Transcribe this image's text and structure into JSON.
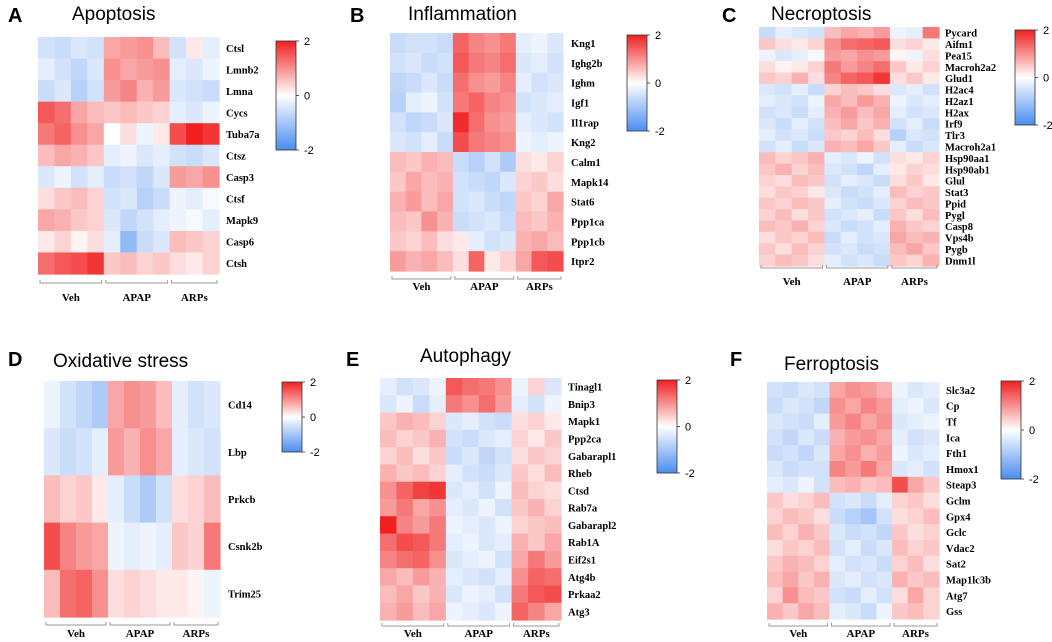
{
  "figure": {
    "scale": {
      "min": -2,
      "max": 2,
      "ticks": [
        2,
        0,
        -2
      ],
      "low_color": "#4a8cf0",
      "mid_color": "#ffffff",
      "high_color": "#f02020"
    },
    "groups": [
      "Veh",
      "APAP",
      "ARPs"
    ]
  },
  "chart_data": [
    {
      "type": "heatmap",
      "letter": "A",
      "title": "Apoptosis",
      "groups": [
        "Veh",
        "APAP",
        "ARPs"
      ],
      "group_sizes": [
        4,
        4,
        3
      ],
      "rows": [
        "Ctsl",
        "Lmnb2",
        "Lmna",
        "Cycs",
        "Tuba7a",
        "Ctsz",
        "Casp3",
        "Ctsf",
        "Mapk9",
        "Casp6",
        "Ctsh"
      ],
      "values": [
        [
          -0.5,
          -0.6,
          -0.4,
          -0.5,
          0.8,
          0.9,
          1.0,
          0.6,
          -0.5,
          0.2,
          -0.3
        ],
        [
          -0.3,
          -0.5,
          -0.7,
          -0.4,
          1.0,
          0.8,
          0.9,
          1.0,
          -0.3,
          -0.4,
          -0.2
        ],
        [
          -0.6,
          -0.4,
          -0.8,
          -0.5,
          0.9,
          1.1,
          0.7,
          0.9,
          -0.4,
          -0.5,
          -0.6
        ],
        [
          1.5,
          1.3,
          0.8,
          0.6,
          0.5,
          0.6,
          0.5,
          0.4,
          -0.3,
          -0.4,
          -0.2
        ],
        [
          1.2,
          1.4,
          1.0,
          0.8,
          0.0,
          0.3,
          -0.2,
          0.2,
          1.6,
          2.0,
          1.8
        ],
        [
          0.6,
          0.8,
          0.7,
          0.5,
          -0.3,
          -0.2,
          -0.4,
          -0.3,
          -0.5,
          -0.6,
          -0.4
        ],
        [
          -0.4,
          -0.2,
          -0.5,
          -0.3,
          -0.6,
          -0.5,
          -0.7,
          -0.4,
          0.9,
          0.8,
          1.0
        ],
        [
          0.3,
          0.5,
          0.6,
          0.4,
          -0.5,
          -0.4,
          -0.8,
          -0.6,
          -0.2,
          -0.3,
          -0.1
        ],
        [
          0.8,
          0.7,
          0.5,
          0.4,
          -0.4,
          -0.7,
          -0.5,
          -0.3,
          -0.2,
          -0.1,
          -0.3
        ],
        [
          0.2,
          0.4,
          0.1,
          0.3,
          -0.3,
          -1.2,
          -0.6,
          -0.4,
          0.6,
          0.5,
          0.4
        ],
        [
          1.3,
          1.5,
          1.6,
          1.8,
          0.5,
          0.6,
          0.4,
          0.5,
          0.3,
          0.2,
          0.4
        ]
      ]
    },
    {
      "type": "heatmap",
      "letter": "B",
      "title": "Inflammation",
      "groups": [
        "Veh",
        "APAP",
        "ARPs"
      ],
      "group_sizes": [
        4,
        4,
        3
      ],
      "rows": [
        "Kng1",
        "Ighg2b",
        "Ighm",
        "Igf1",
        "Il1rap",
        "Kng2",
        "Calm1",
        "Mapk14",
        "Stat6",
        "Ppp1ca",
        "Ppp1cb",
        "Itpr2"
      ],
      "values": [
        [
          -0.6,
          -0.5,
          -0.5,
          -0.6,
          1.4,
          1.1,
          1.0,
          1.2,
          -0.3,
          -0.2,
          -0.4
        ],
        [
          -0.5,
          -0.4,
          -0.6,
          -0.5,
          1.5,
          1.2,
          1.1,
          1.3,
          -0.4,
          -0.3,
          -0.5
        ],
        [
          -0.7,
          -0.6,
          -0.4,
          -0.6,
          1.3,
          1.0,
          0.9,
          1.1,
          -0.3,
          -0.5,
          -0.4
        ],
        [
          -0.8,
          -0.3,
          -0.2,
          -0.5,
          1.2,
          1.4,
          1.1,
          1.0,
          -0.5,
          -0.4,
          -0.3
        ],
        [
          -0.5,
          -0.7,
          -0.6,
          -0.4,
          1.9,
          1.3,
          1.0,
          0.9,
          -0.3,
          -0.4,
          -0.5
        ],
        [
          -0.4,
          -0.5,
          -0.3,
          -0.6,
          1.6,
          1.2,
          1.1,
          1.0,
          -0.2,
          -0.3,
          -0.2
        ],
        [
          0.6,
          0.5,
          0.7,
          0.6,
          -0.6,
          -0.8,
          -0.5,
          -0.9,
          0.3,
          0.2,
          0.4
        ],
        [
          0.5,
          0.8,
          0.6,
          0.7,
          -0.5,
          -0.6,
          -0.7,
          -0.4,
          0.4,
          0.5,
          0.3
        ],
        [
          0.7,
          0.9,
          0.6,
          0.8,
          -0.5,
          -0.4,
          -0.6,
          -0.7,
          0.5,
          0.4,
          0.8
        ],
        [
          0.6,
          0.5,
          1.0,
          0.7,
          -0.6,
          -0.5,
          -0.4,
          -0.6,
          0.6,
          0.5,
          0.7
        ],
        [
          0.5,
          0.4,
          0.6,
          0.3,
          0.2,
          -0.3,
          -0.5,
          -0.4,
          0.7,
          0.8,
          0.6
        ],
        [
          0.9,
          0.7,
          0.8,
          0.6,
          0.3,
          1.4,
          0.2,
          0.4,
          0.8,
          1.5,
          1.6
        ]
      ]
    },
    {
      "type": "heatmap",
      "letter": "C",
      "title": "Necroptosis",
      "groups": [
        "Veh",
        "APAP",
        "ARPs"
      ],
      "group_sizes": [
        4,
        4,
        3
      ],
      "rows": [
        "Pycard",
        "Aifm1",
        "Pea15",
        "Macroh2a2",
        "Glud1",
        "H2ac4",
        "H2az1",
        "H2ax",
        "Irf9",
        "Tlr3",
        "Macroh2a1",
        "Hsp90aa1",
        "Hsp90ab1",
        "Glul",
        "Stat3",
        "Ppid",
        "Pygl",
        "Casp8",
        "Vps4b",
        "Pygb",
        "Dnm1l"
      ],
      "values": [
        [
          -0.6,
          -0.3,
          -0.4,
          -0.5,
          0.6,
          0.8,
          0.7,
          0.9,
          -0.2,
          -0.3,
          1.2
        ],
        [
          0.5,
          0.3,
          0.2,
          0.4,
          1.0,
          1.3,
          1.4,
          1.5,
          0.3,
          0.4,
          0.2
        ],
        [
          -0.2,
          -0.4,
          -0.3,
          -0.1,
          0.9,
          0.8,
          1.0,
          0.9,
          0.1,
          -0.2,
          0.3
        ],
        [
          0.3,
          0.1,
          0.2,
          0.4,
          1.2,
          0.9,
          1.1,
          1.3,
          0.5,
          0.2,
          0.4
        ],
        [
          0.5,
          0.4,
          0.7,
          0.3,
          1.1,
          1.4,
          1.5,
          1.8,
          0.3,
          0.5,
          0.2
        ],
        [
          -0.4,
          -0.5,
          -0.3,
          -0.6,
          0.4,
          0.6,
          0.5,
          0.3,
          -0.4,
          -0.3,
          -0.5
        ],
        [
          -0.3,
          -0.4,
          -0.5,
          -0.2,
          0.8,
          0.6,
          0.9,
          0.7,
          -0.2,
          -0.4,
          -0.3
        ],
        [
          -0.5,
          -0.4,
          -0.6,
          -0.3,
          0.7,
          0.9,
          0.6,
          0.8,
          -0.3,
          -0.5,
          -0.4
        ],
        [
          -0.4,
          -0.6,
          -0.3,
          -0.5,
          0.6,
          0.8,
          0.5,
          0.7,
          -0.5,
          -0.3,
          -0.6
        ],
        [
          -0.3,
          -0.5,
          -0.4,
          -0.6,
          0.5,
          0.4,
          0.6,
          0.3,
          -0.8,
          -0.4,
          -0.5
        ],
        [
          -0.5,
          -0.3,
          -0.6,
          -0.4,
          0.7,
          0.6,
          0.8,
          0.5,
          -0.3,
          -0.6,
          -0.4
        ],
        [
          0.6,
          0.4,
          0.5,
          0.7,
          -0.3,
          -0.4,
          -0.2,
          -0.5,
          0.3,
          0.2,
          0.4
        ],
        [
          0.5,
          0.7,
          0.4,
          0.6,
          -0.4,
          -0.5,
          -0.7,
          -0.3,
          0.2,
          0.4,
          0.3
        ],
        [
          0.4,
          0.3,
          0.6,
          0.5,
          -0.5,
          -0.3,
          -0.4,
          -0.6,
          0.3,
          0.5,
          0.2
        ],
        [
          0.3,
          0.5,
          0.4,
          0.2,
          -0.4,
          -0.6,
          -0.5,
          -0.3,
          0.6,
          0.4,
          0.5
        ],
        [
          0.5,
          0.4,
          0.6,
          0.5,
          -0.3,
          -0.5,
          -0.6,
          -0.4,
          0.4,
          0.6,
          0.5
        ],
        [
          0.4,
          0.6,
          0.3,
          0.5,
          -0.5,
          -0.4,
          -0.3,
          -0.6,
          0.5,
          0.3,
          0.6
        ],
        [
          0.6,
          0.5,
          0.7,
          0.4,
          -0.4,
          -0.6,
          -0.5,
          -0.3,
          0.7,
          0.5,
          0.4
        ],
        [
          0.3,
          0.5,
          0.4,
          0.6,
          -0.6,
          -0.3,
          -0.5,
          -0.4,
          0.8,
          0.6,
          0.7
        ],
        [
          0.5,
          0.3,
          0.6,
          0.4,
          -0.5,
          -0.4,
          -0.6,
          -0.5,
          0.6,
          0.8,
          0.5
        ],
        [
          0.4,
          0.6,
          0.5,
          0.3,
          -0.3,
          -0.5,
          -0.4,
          -0.6,
          0.5,
          0.4,
          0.7
        ]
      ]
    },
    {
      "type": "heatmap",
      "letter": "D",
      "title": "Oxidative stress",
      "groups": [
        "Veh",
        "APAP",
        "ARPs"
      ],
      "group_sizes": [
        4,
        4,
        3
      ],
      "rows": [
        "Cd14",
        "Lbp",
        "Prkcb",
        "Csnk2b",
        "Trim25"
      ],
      "values": [
        [
          -0.2,
          -0.5,
          -0.7,
          -0.9,
          0.8,
          1.0,
          0.9,
          0.6,
          -0.3,
          -0.5,
          -0.4
        ],
        [
          -0.4,
          -0.6,
          -0.5,
          -0.3,
          0.9,
          0.7,
          1.0,
          0.8,
          -0.3,
          -0.4,
          -0.5
        ],
        [
          0.6,
          0.4,
          0.5,
          0.2,
          -0.3,
          -0.6,
          -0.9,
          -0.5,
          0.3,
          0.4,
          0.6
        ],
        [
          1.6,
          1.1,
          0.9,
          0.8,
          -0.2,
          -0.3,
          -0.2,
          -0.3,
          0.5,
          0.4,
          1.2
        ],
        [
          0.6,
          1.3,
          1.4,
          1.0,
          0.3,
          0.4,
          0.3,
          0.2,
          0.2,
          0.1,
          -0.2
        ]
      ]
    },
    {
      "type": "heatmap",
      "letter": "E",
      "title": "Autophagy",
      "groups": [
        "Veh",
        "APAP",
        "ARPs"
      ],
      "group_sizes": [
        4,
        4,
        3
      ],
      "rows": [
        "Tinagl1",
        "Bnip3",
        "Mapk1",
        "Ppp2ca",
        "Gabarapl1",
        "Rheb",
        "Ctsd",
        "Rab7a",
        "Gabarapl2",
        "Rab1A",
        "Eif2s1",
        "Atg4b",
        "Prkaa2",
        "Atg3"
      ],
      "values": [
        [
          -0.3,
          -0.5,
          -0.4,
          -0.2,
          1.5,
          1.3,
          1.2,
          1.0,
          -0.2,
          0.4,
          -0.4
        ],
        [
          -0.4,
          -0.2,
          -0.6,
          -0.3,
          1.2,
          1.0,
          1.3,
          0.9,
          -0.3,
          -0.5,
          -0.2
        ],
        [
          0.5,
          0.7,
          0.6,
          0.4,
          -0.4,
          -0.3,
          -0.5,
          -0.6,
          0.3,
          0.4,
          0.2
        ],
        [
          0.6,
          0.4,
          0.5,
          0.7,
          -0.5,
          -0.6,
          -0.4,
          -0.3,
          0.4,
          0.2,
          0.5
        ],
        [
          0.4,
          0.6,
          0.3,
          0.5,
          -0.6,
          -0.4,
          -0.7,
          -0.5,
          0.3,
          0.5,
          0.4
        ],
        [
          0.7,
          0.5,
          0.6,
          0.4,
          -0.3,
          -0.5,
          -0.6,
          -0.4,
          0.5,
          0.3,
          0.6
        ],
        [
          1.0,
          1.4,
          1.7,
          1.8,
          -0.4,
          -0.3,
          -0.5,
          -0.2,
          0.6,
          0.4,
          0.3
        ],
        [
          0.9,
          1.2,
          0.8,
          1.0,
          -0.3,
          -0.4,
          -0.2,
          -0.5,
          0.5,
          0.7,
          0.4
        ],
        [
          2.0,
          1.1,
          0.9,
          1.2,
          -0.2,
          -0.3,
          -0.4,
          -0.2,
          0.4,
          0.5,
          0.6
        ],
        [
          1.3,
          1.6,
          1.5,
          1.2,
          -0.3,
          -0.2,
          -0.4,
          -0.3,
          0.7,
          0.5,
          0.8
        ],
        [
          1.1,
          1.3,
          1.4,
          1.0,
          -0.4,
          -0.3,
          -0.2,
          -0.5,
          0.8,
          1.2,
          0.9
        ],
        [
          0.8,
          0.6,
          0.9,
          0.7,
          -0.3,
          -0.4,
          -0.5,
          -0.3,
          1.0,
          1.4,
          1.3
        ],
        [
          0.6,
          0.8,
          0.5,
          0.7,
          -0.4,
          -0.2,
          -0.3,
          -0.5,
          1.2,
          1.5,
          1.6
        ],
        [
          0.7,
          0.9,
          0.6,
          0.8,
          -0.2,
          -0.3,
          -0.4,
          -0.2,
          1.4,
          1.1,
          0.8
        ]
      ]
    },
    {
      "type": "heatmap",
      "letter": "F",
      "title": "Ferroptosis",
      "groups": [
        "Veh",
        "APAP",
        "ARPs"
      ],
      "group_sizes": [
        4,
        4,
        3
      ],
      "rows": [
        "Slc3a2",
        "Cp",
        "Tf",
        "Ica",
        "Fth1",
        "Hmox1",
        "Steap3",
        "Gclm",
        "Gpx4",
        "Gclc",
        "Vdac2",
        "Sat2",
        "Map1lc3b",
        "Atg7",
        "Gss"
      ],
      "values": [
        [
          -0.5,
          -0.6,
          -0.4,
          -0.5,
          0.8,
          1.0,
          0.9,
          0.7,
          -0.2,
          -0.4,
          -0.3
        ],
        [
          -0.6,
          -0.4,
          -0.5,
          -0.7,
          1.0,
          0.8,
          1.1,
          0.9,
          -0.3,
          -0.2,
          -0.4
        ],
        [
          -0.4,
          -0.5,
          -0.6,
          -0.3,
          0.9,
          1.1,
          0.8,
          1.0,
          -0.4,
          -0.3,
          -0.2
        ],
        [
          -0.5,
          -0.7,
          -0.4,
          -0.6,
          0.7,
          0.9,
          1.0,
          0.8,
          -0.3,
          -0.5,
          -0.4
        ],
        [
          -0.6,
          -0.5,
          -0.7,
          -0.4,
          0.8,
          1.0,
          0.7,
          0.9,
          -0.2,
          -0.4,
          -0.3
        ],
        [
          -0.4,
          -0.6,
          -0.5,
          -0.5,
          1.1,
          0.9,
          1.2,
          0.8,
          -0.4,
          -0.3,
          -0.5
        ],
        [
          -0.3,
          -0.4,
          -0.2,
          -0.5,
          0.6,
          0.7,
          0.5,
          0.6,
          1.6,
          0.8,
          0.5
        ],
        [
          0.5,
          0.3,
          0.4,
          0.6,
          -0.5,
          -0.4,
          -0.6,
          -0.3,
          0.4,
          0.5,
          0.3
        ],
        [
          0.4,
          0.6,
          0.5,
          0.3,
          -0.6,
          -0.8,
          -1.0,
          -0.5,
          0.3,
          0.4,
          0.6
        ],
        [
          0.6,
          0.4,
          0.7,
          0.5,
          -0.4,
          -0.6,
          -0.5,
          -0.7,
          0.5,
          0.3,
          0.4
        ],
        [
          0.3,
          0.5,
          0.4,
          0.6,
          -0.5,
          -0.3,
          -0.6,
          -0.4,
          0.6,
          0.4,
          0.5
        ],
        [
          0.5,
          0.7,
          0.6,
          0.4,
          -0.3,
          -0.5,
          -0.4,
          -0.6,
          0.4,
          0.6,
          0.3
        ],
        [
          0.6,
          0.8,
          0.5,
          0.7,
          -0.4,
          -0.3,
          -0.5,
          -0.4,
          0.7,
          0.5,
          0.6
        ],
        [
          0.4,
          1.0,
          0.6,
          0.5,
          -0.5,
          -0.6,
          -0.3,
          -0.5,
          0.3,
          0.8,
          0.4
        ],
        [
          0.7,
          0.5,
          0.8,
          0.6,
          -0.3,
          -0.4,
          -0.6,
          -0.2,
          0.5,
          0.6,
          0.4
        ]
      ]
    }
  ]
}
